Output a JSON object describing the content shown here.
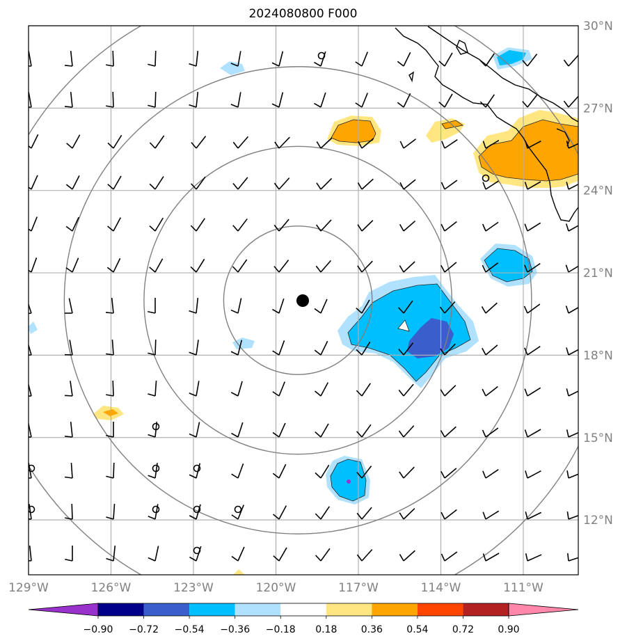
{
  "title": "2024080800 F000",
  "center_marker": {
    "lon": -119.2,
    "lat": 20.0
  },
  "extent": {
    "lon": [
      -129.0,
      -109.0
    ],
    "lat": [
      10.0,
      30.0
    ]
  },
  "lon_ticks": [
    {
      "value": -129,
      "label": "129°W"
    },
    {
      "value": -126,
      "label": "126°W"
    },
    {
      "value": -123,
      "label": "123°W"
    },
    {
      "value": -120,
      "label": "120°W"
    },
    {
      "value": -117,
      "label": "117°W"
    },
    {
      "value": -114,
      "label": "114°W"
    },
    {
      "value": -111,
      "label": "111°W"
    }
  ],
  "lat_ticks": [
    {
      "value": 30,
      "label": "30°N"
    },
    {
      "value": 27,
      "label": "27°N"
    },
    {
      "value": 24,
      "label": "24°N"
    },
    {
      "value": 21,
      "label": "21°N"
    },
    {
      "value": 18,
      "label": "18°N"
    },
    {
      "value": 15,
      "label": "15°N"
    },
    {
      "value": 12,
      "label": "12°N"
    }
  ],
  "range_rings_deg": [
    2.7,
    5.6,
    8.5,
    11.5
  ],
  "colorbar": {
    "colors": [
      "#9932cc",
      "#00008b",
      "#3a5fcd",
      "#00bfff",
      "#b0e2ff",
      "#ffffff",
      "#ffe680",
      "#ffa500",
      "#ff4500",
      "#b22222",
      "#ff88aa"
    ],
    "tick_labels": [
      "−0.90",
      "−0.72",
      "−0.54",
      "−0.36",
      "−0.18",
      "0.18",
      "0.36",
      "0.54",
      "0.72",
      "0.90"
    ]
  },
  "colors": {
    "grid": "#b0b0b0",
    "rings": "#808080",
    "coast": "#000000",
    "tick_label": "#808080"
  }
}
